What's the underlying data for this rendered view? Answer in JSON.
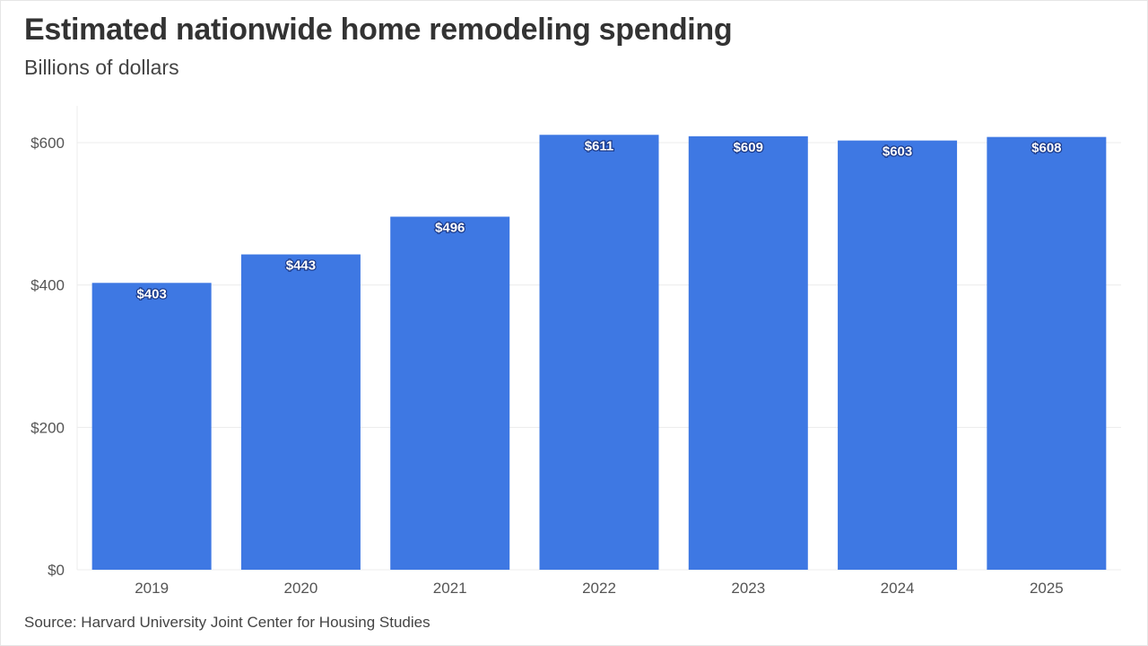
{
  "chart_data": {
    "type": "bar",
    "title": "Estimated nationwide home remodeling spending",
    "subtitle": "Billions of dollars",
    "source": "Source: Harvard University Joint Center for Housing Studies",
    "categories": [
      "2019",
      "2020",
      "2021",
      "2022",
      "2023",
      "2024",
      "2025"
    ],
    "values": [
      403,
      443,
      496,
      611,
      609,
      603,
      608
    ],
    "data_labels": [
      "$403",
      "$443",
      "$496",
      "$611",
      "$609",
      "$603",
      "$608"
    ],
    "xlabel": "",
    "ylabel": "",
    "ylim": [
      0,
      650
    ],
    "yticks": [
      0,
      200,
      400,
      600
    ],
    "ytick_labels": [
      "$0",
      "$200",
      "$400",
      "$600"
    ],
    "grid": true,
    "bar_color": "#3e78e3"
  }
}
